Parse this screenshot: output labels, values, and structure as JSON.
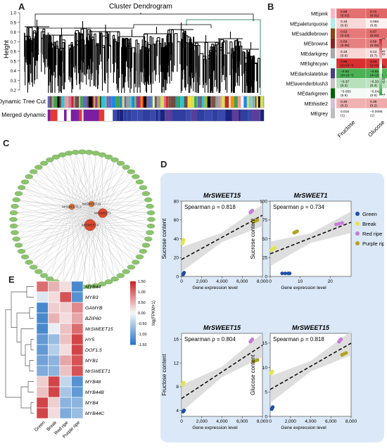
{
  "panels": {
    "a": "A",
    "b": "B",
    "c": "C",
    "d": "D",
    "e": "E"
  },
  "dendrogram": {
    "title": "Cluster Dendrogram",
    "ylabel": "Height",
    "yticks": [
      "1.0",
      "0.9",
      "0.8",
      "0.7",
      "0.6",
      "0.5",
      "0.4",
      "0.3",
      "0.2"
    ],
    "row_labels": [
      "Dynamic Tree Cut",
      "Merged dynamic"
    ]
  },
  "heatmap_b": {
    "rows": [
      {
        "name": "MEpink",
        "cells": [
          [
            "0.66",
            "(0.02)"
          ],
          [
            "0.71",
            "(0.01)"
          ],
          [
            "0.78",
            "(0.004)"
          ]
        ]
      },
      {
        "name": "MEpaleturquoise",
        "cells": [
          [
            "0.18",
            "(0.6)"
          ],
          [
            "0.068",
            "(0.8)"
          ],
          [
            "0.16",
            "(0.6)"
          ]
        ]
      },
      {
        "name": "MEsaddlebrown",
        "cells": [
          [
            "0.62",
            "(0.03)"
          ],
          [
            "0.67",
            "(0.02)"
          ],
          [
            "0.72",
            "(0.008)"
          ]
        ]
      },
      {
        "name": "MEbrown4",
        "cells": [
          [
            "0.59",
            "(0.05)"
          ],
          [
            "0.58",
            "(0.05)"
          ],
          [
            "0.59",
            "(0.05)"
          ]
        ]
      },
      {
        "name": "MEdarkgrey",
        "cells": [
          [
            "0.19",
            "(0.6)"
          ],
          [
            "0.14",
            "(0.7)"
          ],
          [
            "0.055",
            "(0.9)"
          ]
        ]
      },
      {
        "name": "MElightcyan",
        "cells": [
          [
            "0.96",
            "(2×10⁻⁶)"
          ],
          [
            "0.93",
            "(1×10⁻⁵)"
          ],
          [
            "0.8",
            "(0.002)"
          ]
        ]
      },
      {
        "name": "MEdarkslateblue",
        "cells": [
          [
            "−0.92",
            "(3×10⁻⁵)"
          ],
          [
            "−0.91",
            "(4×10⁻⁵)"
          ],
          [
            "−0.92",
            "(3×10⁻⁵)"
          ]
        ]
      },
      {
        "name": "MElavenderblush3",
        "cells": [
          [
            "−0.37",
            "(0.2)"
          ],
          [
            "−0.33",
            "(0.3)"
          ],
          [
            "−0.31",
            "(0.3)"
          ]
        ]
      },
      {
        "name": "MEdarkgreen",
        "cells": [
          [
            "−0.055",
            "(0.9)"
          ],
          [
            "−0.042",
            "(0.9)"
          ],
          [
            "−0.032",
            "(0.9)"
          ]
        ]
      },
      {
        "name": "MEthistle2",
        "cells": [
          [
            "0.36",
            "(0.2)"
          ],
          [
            "0.39",
            "(0.2)"
          ],
          [
            "0.36",
            "(0.2)"
          ]
        ]
      },
      {
        "name": "MEgrey",
        "cells": [
          [
            "0.016",
            "(1)"
          ],
          [
            "−0.0095",
            "(1)"
          ],
          [
            "−0.027",
            "(0.9)"
          ]
        ]
      }
    ],
    "values": [
      [
        0.66,
        0.71,
        0.78
      ],
      [
        0.18,
        0.068,
        0.16
      ],
      [
        0.62,
        0.67,
        0.72
      ],
      [
        0.59,
        0.58,
        0.59
      ],
      [
        0.19,
        0.14,
        0.055
      ],
      [
        0.96,
        0.93,
        0.8
      ],
      [
        -0.92,
        -0.91,
        -0.92
      ],
      [
        -0.37,
        -0.33,
        -0.31
      ],
      [
        -0.055,
        -0.042,
        -0.032
      ],
      [
        0.36,
        0.39,
        0.36
      ],
      [
        0.016,
        -0.0095,
        -0.027
      ]
    ],
    "module_colors": [
      "#ffb6c1",
      "#afeeee",
      "#8b4513",
      "#8b2323",
      "#a9a9a9",
      "#e0ffff",
      "#483d8b",
      "#cdc1c5",
      "#006400",
      "#d8bfd8",
      "#bebebe"
    ],
    "columns": [
      "Fructose",
      "Glucose",
      "Sucrose"
    ],
    "scale_ticks": [
      "1",
      "0.5",
      "0",
      "-0.5",
      "-1"
    ]
  },
  "network": {
    "hubs": [
      "MrSWEET4",
      "MrSWEET1",
      "MrSWEET15",
      "MrSWEET1.2"
    ]
  },
  "scatter_d": {
    "plots": [
      {
        "title": "MrSWEET15",
        "ylabel": "Sucrose content",
        "stat": "Spearman ρ = 0.818",
        "xticks": [
          "0",
          "2,000",
          "4,000",
          "6,000",
          "8,000"
        ],
        "yticks": [
          "0",
          "20",
          "40",
          "60",
          "80"
        ]
      },
      {
        "title": "MrSWEET1",
        "ylabel": "Sucrose content",
        "stat": "Spearman ρ = 0.734",
        "xticks": [
          "0",
          "10",
          "20"
        ],
        "yticks": [
          "0",
          "25",
          "50",
          "75",
          "100"
        ]
      },
      {
        "title": "MrSWEET15",
        "ylabel": "Fructose content",
        "stat": "Spearman ρ = 0.804",
        "xticks": [
          "0",
          "2,000",
          "4,000",
          "6,000",
          "8,000"
        ],
        "yticks": [
          "4",
          "8",
          "12",
          "16"
        ]
      },
      {
        "title": "MrSWEET15",
        "ylabel": "Glucose content",
        "stat": "Spearman ρ = 0.818",
        "xticks": [
          "0",
          "2,000",
          "4,000",
          "6,000",
          "8,000"
        ],
        "yticks": [
          "0",
          "5",
          "10",
          "15"
        ]
      }
    ],
    "xlabel": "Gene      expression      level",
    "legend": [
      {
        "name": "Green",
        "color": "#1f4fa8"
      },
      {
        "name": "Break",
        "color": "#e8e34a"
      },
      {
        "name": "Red ripe",
        "color": "#c77bd6"
      },
      {
        "name": "Purple ripe",
        "color": "#b3a21e"
      }
    ]
  },
  "heatmap_e": {
    "genes": [
      "MYB44",
      "MYB3",
      "GAMYB",
      "BZIP60",
      "MrSWEET15",
      "HY5",
      "DOF1.5",
      "MYB1",
      "MrSWEET1",
      "MYB48",
      "MYB44B",
      "MYB4",
      "MYB44C"
    ],
    "columns": [
      "Green",
      "Break",
      "Red ripe",
      "Purple ripe"
    ],
    "scale_label": "log(FPKM+1)",
    "scale_ticks": [
      "1.50",
      "1.00",
      "0.50",
      "0.00",
      "-0.50",
      "-1.00",
      "-1.50"
    ]
  },
  "chart_data": [
    {
      "type": "heatmap",
      "title": "",
      "rows": [
        "MEpink",
        "MEpaleturquoise",
        "MEsaddlebrown",
        "MEbrown4",
        "MEdarkgrey",
        "MElightcyan",
        "MEdarkslateblue",
        "MElavenderblush3",
        "MEdarkgreen",
        "MEthistle2",
        "MEgrey"
      ],
      "columns": [
        "Fructose",
        "Glucose",
        "Sucrose"
      ],
      "values": [
        [
          0.66,
          0.71,
          0.78
        ],
        [
          0.18,
          0.068,
          0.16
        ],
        [
          0.62,
          0.67,
          0.72
        ],
        [
          0.59,
          0.58,
          0.59
        ],
        [
          0.19,
          0.14,
          0.055
        ],
        [
          0.96,
          0.93,
          0.8
        ],
        [
          -0.92,
          -0.91,
          -0.92
        ],
        [
          -0.37,
          -0.33,
          -0.31
        ],
        [
          -0.055,
          -0.042,
          -0.032
        ],
        [
          0.36,
          0.39,
          0.36
        ],
        [
          0.016,
          -0.0095,
          -0.027
        ]
      ],
      "range": [
        -1,
        1
      ]
    },
    {
      "type": "scatter",
      "title": "MrSWEET15",
      "xlabel": "Gene expression level",
      "ylabel": "Sucrose content",
      "xlim": [
        0,
        8000
      ],
      "ylim": [
        0,
        80
      ],
      "series": [
        {
          "name": "Green",
          "x": [
            150,
            200,
            250
          ],
          "y": [
            2,
            3,
            4
          ]
        },
        {
          "name": "Break",
          "x": [
            100,
            150,
            200
          ],
          "y": [
            35,
            37,
            39
          ]
        },
        {
          "name": "Red ripe",
          "x": [
            6800,
            6900,
            7000
          ],
          "y": [
            68,
            69,
            70
          ]
        },
        {
          "name": "Purple ripe",
          "x": [
            7100,
            7300,
            7500
          ],
          "y": [
            58,
            59,
            60
          ]
        }
      ],
      "trend": [
        [
          0,
          18
        ],
        [
          8000,
          65
        ]
      ]
    },
    {
      "type": "scatter",
      "title": "MrSWEET1",
      "xlabel": "Gene expression level",
      "ylabel": "Sucrose content",
      "xlim": [
        0,
        27
      ],
      "ylim": [
        0,
        100
      ],
      "series": [
        {
          "name": "Green",
          "x": [
            4,
            5,
            6,
            6.5
          ],
          "y": [
            4,
            4,
            4,
            4
          ]
        },
        {
          "name": "Break",
          "x": [
            0.5,
            1,
            1.5
          ],
          "y": [
            35,
            37,
            38
          ]
        },
        {
          "name": "Red ripe",
          "x": [
            22,
            23,
            24
          ],
          "y": [
            69,
            70,
            71
          ]
        },
        {
          "name": "Purple ripe",
          "x": [
            8,
            8.5,
            9
          ],
          "y": [
            58,
            59,
            60
          ]
        }
      ],
      "trend": [
        [
          0,
          30
        ],
        [
          27,
          72
        ]
      ]
    },
    {
      "type": "scatter",
      "title": "MrSWEET15",
      "xlabel": "Gene expression level",
      "ylabel": "Fructose content",
      "xlim": [
        0,
        8000
      ],
      "ylim": [
        3,
        17
      ],
      "series": [
        {
          "name": "Green",
          "x": [
            150,
            200,
            250
          ],
          "y": [
            3.8,
            3.9,
            4.0
          ]
        },
        {
          "name": "Break",
          "x": [
            100,
            150,
            200
          ],
          "y": [
            8.3,
            8.5,
            8.7
          ]
        },
        {
          "name": "Red ripe",
          "x": [
            6800,
            6900,
            7000
          ],
          "y": [
            15.6,
            15.8,
            16.0
          ]
        },
        {
          "name": "Purple ripe",
          "x": [
            7100,
            7300,
            7500
          ],
          "y": [
            12.2,
            12.4,
            12.5
          ]
        }
      ],
      "trend": [
        [
          0,
          6
        ],
        [
          8000,
          15
        ]
      ]
    },
    {
      "type": "scatter",
      "title": "MrSWEET15",
      "xlabel": "Gene expression level",
      "ylabel": "Glucose content",
      "xlim": [
        0,
        8000
      ],
      "ylim": [
        0,
        17
      ],
      "series": [
        {
          "name": "Green",
          "x": [
            150,
            200,
            250
          ],
          "y": [
            1.5,
            1.7,
            1.9
          ]
        },
        {
          "name": "Break",
          "x": [
            100,
            150,
            200
          ],
          "y": [
            8.8,
            9.0,
            9.2
          ]
        },
        {
          "name": "Red ripe",
          "x": [
            6800,
            6900,
            7000
          ],
          "y": [
            15.3,
            15.6,
            15.8
          ]
        },
        {
          "name": "Purple ripe",
          "x": [
            7100,
            7300,
            7500
          ],
          "y": [
            12.6,
            12.8,
            13.0
          ]
        }
      ],
      "trend": [
        [
          0,
          5.5
        ],
        [
          8000,
          15
        ]
      ]
    },
    {
      "type": "heatmap",
      "title": "",
      "rows": [
        "MYB44",
        "MYB3",
        "GAMYB",
        "BZIP60",
        "MrSWEET15",
        "HY5",
        "DOF1.5",
        "MYB1",
        "MrSWEET1",
        "MYB48",
        "MYB44B",
        "MYB4",
        "MYB44C"
      ],
      "columns": [
        "Green",
        "Break",
        "Red ripe",
        "Purple ripe"
      ],
      "values": [
        [
          1.0,
          0.5,
          0.2,
          -1.3
        ],
        [
          -0.2,
          0.2,
          1.2,
          -1.2
        ],
        [
          -1.3,
          0.3,
          0.3,
          0.8
        ],
        [
          -1.3,
          0.5,
          0.2,
          0.6
        ],
        [
          -1.3,
          -0.1,
          0.4,
          1.0
        ],
        [
          -1.1,
          -0.7,
          0.4,
          1.3
        ],
        [
          -1.1,
          -0.5,
          0.2,
          1.3
        ],
        [
          -1.0,
          -0.8,
          0.6,
          1.2
        ],
        [
          -0.9,
          -0.8,
          0.4,
          1.2
        ],
        [
          0.3,
          1.3,
          -0.4,
          -1.2
        ],
        [
          0.4,
          1.3,
          -0.6,
          -1.1
        ],
        [
          1.3,
          0.3,
          -0.8,
          -0.8
        ],
        [
          1.3,
          0.2,
          -0.9,
          -0.7
        ]
      ],
      "range": [
        -1.5,
        1.5
      ]
    }
  ]
}
